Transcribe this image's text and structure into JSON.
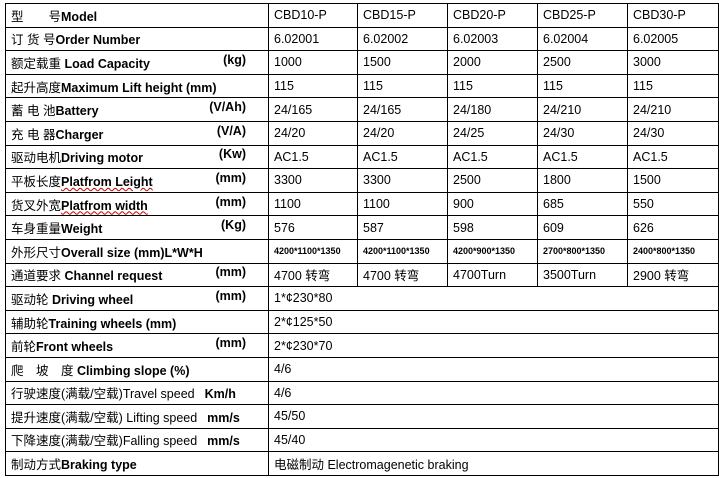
{
  "models": [
    "CBD10-P",
    "CBD15-P",
    "CBD20-P",
    "CBD25-P",
    "CBD30-P"
  ],
  "rows": [
    {
      "cn": "型　　号",
      "en": "Model",
      "unit": "",
      "values": [
        "CBD10-P",
        "CBD15-P",
        "CBD20-P",
        "CBD25-P",
        "CBD30-P"
      ]
    },
    {
      "cn": "订 货 号",
      "en": "Order Number",
      "unit": "",
      "values": [
        "6.02001",
        "6.02002",
        "6.02003",
        "6.02004",
        "6.02005"
      ]
    },
    {
      "cn": "额定载重",
      "en": " Load Capacity",
      "unit": "(kg)",
      "values": [
        "1000",
        "1500",
        "2000",
        "2500",
        "3000"
      ]
    },
    {
      "cn": "起升高度",
      "en": "Maximum Lift height (mm)",
      "unit": "",
      "values": [
        "115",
        "115",
        "115",
        "115",
        "115"
      ]
    },
    {
      "cn": "蓄 电 池",
      "en": "Battery",
      "unit": "(V/Ah)",
      "values": [
        "24/165",
        "24/165",
        "24/180",
        "24/210",
        "24/210"
      ]
    },
    {
      "cn": "充 电 器",
      "en": "Charger",
      "unit": "(V/A)",
      "values": [
        "24/20",
        "24/20",
        "24/25",
        "24/30",
        "24/30"
      ]
    },
    {
      "cn": "驱动电机",
      "en": "Driving motor",
      "unit": "(Kw)",
      "values": [
        "AC1.5",
        "AC1.5",
        "AC1.5",
        "AC1.5",
        "AC1.5"
      ]
    },
    {
      "cn": "平板长度",
      "en": "Platfrom Leight",
      "unit": "(mm)",
      "values": [
        "3300",
        "3300",
        "2500",
        "1800",
        "1500"
      ]
    },
    {
      "cn": "货叉外宽",
      "en": "Platfrom width",
      "unit": "(mm)",
      "values": [
        "1100",
        "1100",
        "900",
        "685",
        "550"
      ]
    },
    {
      "cn": "车身重量",
      "en": "Weight",
      "unit": "(Kg)",
      "values": [
        "576",
        "587",
        "598",
        "609",
        "626"
      ]
    },
    {
      "cn": "外形尺寸",
      "en": "Overall size (mm)L*W*H",
      "unit": "",
      "values": [
        "4200*1100*1350",
        "4200*1100*1350",
        "4200*900*1350",
        "2700*800*1350",
        "2400*800*1350"
      ]
    },
    {
      "cn": "通道要求",
      "en": " Channel request",
      "unit": "(mm)",
      "values": [
        "4700 转弯",
        "4700 转弯",
        "4700Turn",
        "3500Turn",
        "2900 转弯"
      ]
    },
    {
      "cn": "驱动轮",
      "en": " Driving wheel",
      "unit": "(mm)",
      "span": "1*¢230*80"
    },
    {
      "cn": "辅助轮",
      "en": "Training wheels (mm)",
      "unit": "",
      "span": "2*¢125*50"
    },
    {
      "cn": "前轮",
      "en": "Front wheels",
      "unit": "(mm)",
      "span": "2*¢230*70"
    },
    {
      "cn": "爬　坡　度",
      "en": " Climbing slope (%)",
      "unit": "",
      "span": "4/6"
    },
    {
      "cn": "行驶速度(满载/空载)",
      "en": "Travel speed",
      "unit": "Km/h",
      "span": "4/6"
    },
    {
      "cn": "提升速度(满载/空载)",
      "en": " Lifting speed",
      "unit": "mm/s",
      "span": " 45/50"
    },
    {
      "cn": "下降速度(满载/空载)",
      "en": "Falling speed",
      "unit": "mm/s",
      "span": " 45/40"
    },
    {
      "cn": "制动方式",
      "en": "Braking type",
      "unit": "",
      "span": "电磁制动 Electromagenetic braking"
    }
  ]
}
